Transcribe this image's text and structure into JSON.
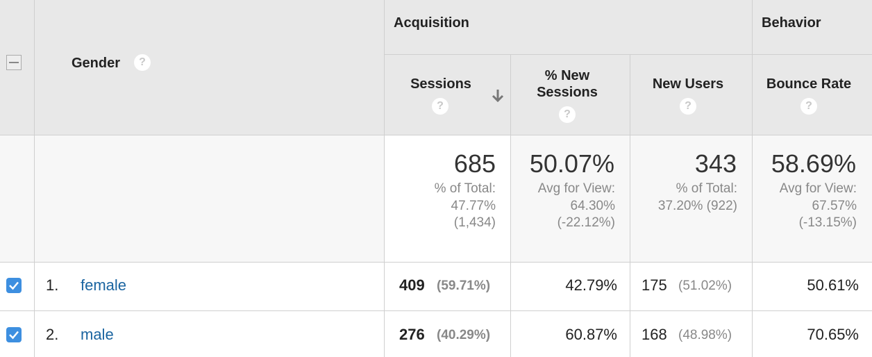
{
  "header": {
    "dimension": "Gender",
    "help": "?",
    "groups": [
      "Acquisition",
      "Behavior"
    ],
    "columns": [
      "Sessions",
      "% New Sessions",
      "New Users",
      "Bounce Rate"
    ]
  },
  "totals": [
    {
      "value": "685",
      "lines": [
        "% of Total:",
        "47.77%",
        "(1,434)"
      ]
    },
    {
      "value": "50.07%",
      "lines": [
        "Avg for View:",
        "64.30%",
        "(-22.12%)"
      ]
    },
    {
      "value": "343",
      "lines": [
        "% of Total:",
        "37.20% (922)"
      ]
    },
    {
      "value": "58.69%",
      "lines": [
        "Avg for View:",
        "67.57%",
        "(-13.15%)"
      ]
    }
  ],
  "rows": [
    {
      "index": "1.",
      "gender": "female",
      "sessions": "409",
      "sessions_share": "(59.71%)",
      "new_sessions_pct": "42.79%",
      "new_users": "175",
      "new_users_share": "(51.02%)",
      "bounce_rate": "50.61%"
    },
    {
      "index": "2.",
      "gender": "male",
      "sessions": "276",
      "sessions_share": "(40.29%)",
      "new_sessions_pct": "60.87%",
      "new_users": "168",
      "new_users_share": "(48.98%)",
      "bounce_rate": "70.65%"
    }
  ]
}
